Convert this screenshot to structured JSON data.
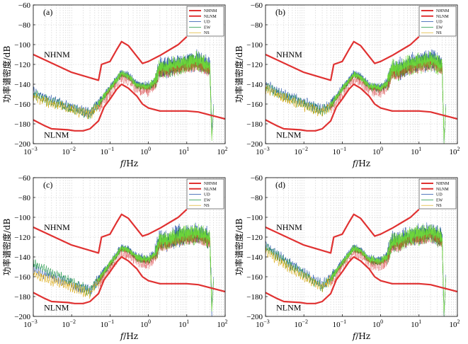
{
  "chart_data": [
    {
      "type": "line",
      "panel_label": "(a)",
      "xlabel": "f/Hz",
      "ylabel": "功率谱密度/dB",
      "xscale": "log",
      "xlim": [
        0.001,
        100
      ],
      "ylim": [
        -200,
        -60
      ],
      "x_ticks": [
        "10",
        "10",
        "10",
        "10",
        "10",
        "10"
      ],
      "x_tick_exponents": [
        "-3",
        "-2",
        "-1",
        "0",
        "1",
        "2"
      ],
      "y_ticks": [
        "-60",
        "-80",
        "-100",
        "-120",
        "-140",
        "-160",
        "-180",
        "-200"
      ],
      "y_tick_values": [
        -60,
        -80,
        -100,
        -120,
        -140,
        -160,
        -180,
        -200
      ],
      "legend": [
        "NHNM",
        "NLNM",
        "UD",
        "EW",
        "NS"
      ],
      "annotations": [
        "NHNM",
        "NLNM"
      ],
      "seed": 1,
      "lowfreq_level": 1,
      "series": [
        {
          "name": "NHNM",
          "color": "#e03131",
          "x": [
            0.001,
            0.01,
            0.05,
            0.06,
            0.1,
            0.15,
            0.2,
            0.3,
            0.7,
            1,
            2,
            6,
            10
          ],
          "values": [
            -110,
            -128,
            -136,
            -120,
            -117,
            -105,
            -97,
            -101,
            -119,
            -117,
            -111,
            -100,
            -92
          ]
        },
        {
          "name": "NLNM",
          "color": "#e03131",
          "x": [
            0.001,
            0.002,
            0.003,
            0.008,
            0.012,
            0.02,
            0.03,
            0.05,
            0.07,
            0.1,
            0.15,
            0.2,
            0.3,
            0.5,
            0.7,
            1,
            2,
            5,
            10,
            20,
            50,
            100
          ],
          "values": [
            -176,
            -182,
            -185,
            -186,
            -187,
            -187,
            -185,
            -177,
            -163,
            -155,
            -145,
            -140,
            -144,
            -152,
            -160,
            -164,
            -167,
            -167,
            -167,
            -168,
            -172,
            -175
          ]
        },
        {
          "name": "UD",
          "color": "#1f4fa8",
          "x": [
            0.001,
            0.003,
            0.01,
            0.03,
            0.05,
            0.1,
            0.2,
            0.3,
            0.5,
            1,
            1.5,
            2,
            3,
            5,
            10,
            20,
            40,
            45,
            50
          ],
          "values": [
            -148,
            -156,
            -163,
            -169,
            -159,
            -143,
            -128,
            -131,
            -140,
            -142,
            -136,
            -122,
            -124,
            -120,
            -118,
            -116,
            -122,
            -190,
            -160
          ]
        },
        {
          "name": "EW",
          "color": "#1a9641",
          "x": [
            0.001,
            0.003,
            0.01,
            0.03,
            0.05,
            0.1,
            0.2,
            0.3,
            0.5,
            1,
            1.5,
            2,
            3,
            5,
            10,
            20,
            40,
            45,
            50
          ],
          "values": [
            -150,
            -158,
            -165,
            -170,
            -160,
            -144,
            -129,
            -132,
            -141,
            -143,
            -137,
            -123,
            -125,
            -121,
            -119,
            -117,
            -123,
            -195,
            -162
          ]
        },
        {
          "name": "NS",
          "color": "#d9a400",
          "x": [
            0.001,
            0.003,
            0.01,
            0.03,
            0.05,
            0.1,
            0.2,
            0.3,
            0.5,
            1,
            1.5,
            2,
            3,
            5,
            10,
            20,
            40,
            45,
            50
          ],
          "values": [
            -152,
            -160,
            -166,
            -171,
            -161,
            -145,
            -130,
            -133,
            -142,
            -144,
            -138,
            -124,
            -126,
            -122,
            -120,
            -118,
            -124,
            -192,
            -165
          ]
        }
      ]
    },
    {
      "type": "line",
      "panel_label": "(b)",
      "xlabel": "f/Hz",
      "ylabel": "功率谱密度/dB",
      "xscale": "log",
      "xlim": [
        0.001,
        100
      ],
      "ylim": [
        -200,
        -60
      ],
      "x_ticks": [
        "10",
        "10",
        "10",
        "10",
        "10",
        "10"
      ],
      "x_tick_exponents": [
        "-3",
        "-2",
        "-1",
        "0",
        "1",
        "2"
      ],
      "y_ticks": [
        "-60",
        "-80",
        "-100",
        "-120",
        "-140",
        "-160",
        "-180",
        "-200"
      ],
      "y_tick_values": [
        -60,
        -80,
        -100,
        -120,
        -140,
        -160,
        -180,
        -200
      ],
      "legend": [
        "NHNM",
        "NLNM",
        "UD",
        "EW",
        "NS"
      ],
      "annotations": [
        "NHNM",
        "NLNM"
      ],
      "seed": 2,
      "lowfreq_level": 2,
      "series": [
        {
          "name": "NHNM",
          "color": "#e03131",
          "x": [
            0.001,
            0.01,
            0.05,
            0.06,
            0.1,
            0.15,
            0.2,
            0.3,
            0.7,
            1,
            2,
            6,
            10
          ],
          "values": [
            -110,
            -128,
            -136,
            -120,
            -117,
            -105,
            -97,
            -101,
            -119,
            -117,
            -111,
            -100,
            -92
          ]
        },
        {
          "name": "NLNM",
          "color": "#e03131",
          "x": [
            0.001,
            0.002,
            0.003,
            0.008,
            0.012,
            0.02,
            0.03,
            0.05,
            0.07,
            0.1,
            0.15,
            0.2,
            0.3,
            0.5,
            0.7,
            1,
            2,
            5,
            10,
            20,
            50,
            100
          ],
          "values": [
            -176,
            -182,
            -185,
            -186,
            -187,
            -187,
            -185,
            -177,
            -163,
            -155,
            -145,
            -140,
            -144,
            -152,
            -160,
            -164,
            -167,
            -167,
            -167,
            -168,
            -172,
            -175
          ]
        },
        {
          "name": "UD",
          "color": "#1f4fa8",
          "x": [
            0.001,
            0.003,
            0.01,
            0.03,
            0.05,
            0.1,
            0.2,
            0.3,
            0.5,
            1,
            1.5,
            2,
            3,
            5,
            10,
            20,
            40,
            45,
            50
          ],
          "values": [
            -140,
            -150,
            -158,
            -166,
            -160,
            -144,
            -129,
            -132,
            -141,
            -143,
            -138,
            -124,
            -125,
            -120,
            -118,
            -115,
            -121,
            -200,
            -160
          ]
        },
        {
          "name": "EW",
          "color": "#1a9641",
          "x": [
            0.001,
            0.003,
            0.01,
            0.03,
            0.05,
            0.1,
            0.2,
            0.3,
            0.5,
            1,
            1.5,
            2,
            3,
            5,
            10,
            20,
            40,
            45,
            50
          ],
          "values": [
            -142,
            -152,
            -160,
            -167,
            -161,
            -145,
            -130,
            -133,
            -142,
            -144,
            -139,
            -125,
            -126,
            -121,
            -119,
            -116,
            -122,
            -198,
            -162
          ]
        },
        {
          "name": "NS",
          "color": "#d9a400",
          "x": [
            0.001,
            0.003,
            0.01,
            0.03,
            0.05,
            0.1,
            0.2,
            0.3,
            0.5,
            1,
            1.5,
            2,
            3,
            5,
            10,
            20,
            40,
            45,
            50
          ],
          "values": [
            -144,
            -154,
            -162,
            -168,
            -162,
            -146,
            -131,
            -134,
            -143,
            -145,
            -140,
            -126,
            -127,
            -122,
            -120,
            -117,
            -123,
            -196,
            -164
          ]
        }
      ]
    },
    {
      "type": "line",
      "panel_label": "(c)",
      "xlabel": "f/Hz",
      "ylabel": "功率谱密度/dB",
      "xscale": "log",
      "xlim": [
        0.001,
        100
      ],
      "ylim": [
        -200,
        -60
      ],
      "x_ticks": [
        "10",
        "10",
        "10",
        "10",
        "10",
        "10"
      ],
      "x_tick_exponents": [
        "-3",
        "-2",
        "-1",
        "0",
        "1",
        "2"
      ],
      "y_ticks": [
        "-60",
        "-80",
        "-100",
        "-120",
        "-140",
        "-160",
        "-180",
        "-200"
      ],
      "y_tick_values": [
        -60,
        -80,
        -100,
        -120,
        -140,
        -160,
        -180,
        -200
      ],
      "legend": [
        "NHNM",
        "NLNM",
        "UD",
        "EW",
        "NS"
      ],
      "annotations": [
        "NHNM",
        "NLNM"
      ],
      "seed": 3,
      "lowfreq_level": 3,
      "series": [
        {
          "name": "NHNM",
          "color": "#e03131",
          "x": [
            0.001,
            0.01,
            0.05,
            0.06,
            0.1,
            0.15,
            0.2,
            0.3,
            0.7,
            1,
            2,
            6,
            10
          ],
          "values": [
            -110,
            -128,
            -136,
            -120,
            -117,
            -105,
            -97,
            -101,
            -119,
            -117,
            -111,
            -100,
            -92
          ]
        },
        {
          "name": "NLNM",
          "color": "#e03131",
          "x": [
            0.001,
            0.002,
            0.003,
            0.008,
            0.012,
            0.02,
            0.03,
            0.05,
            0.07,
            0.1,
            0.15,
            0.2,
            0.3,
            0.5,
            0.7,
            1,
            2,
            5,
            10,
            20,
            50,
            100
          ],
          "values": [
            -176,
            -182,
            -185,
            -186,
            -187,
            -187,
            -185,
            -177,
            -163,
            -155,
            -145,
            -140,
            -144,
            -152,
            -160,
            -164,
            -167,
            -167,
            -167,
            -168,
            -172,
            -175
          ]
        },
        {
          "name": "UD",
          "color": "#1f4fa8",
          "x": [
            0.001,
            0.003,
            0.01,
            0.03,
            0.05,
            0.1,
            0.2,
            0.3,
            0.5,
            1,
            1.5,
            2,
            3,
            5,
            10,
            20,
            40,
            45,
            50
          ],
          "values": [
            -152,
            -160,
            -167,
            -174,
            -162,
            -146,
            -130,
            -132,
            -140,
            -142,
            -136,
            -123,
            -124,
            -119,
            -117,
            -116,
            -121,
            -190,
            -160
          ]
        },
        {
          "name": "EW",
          "color": "#1a9641",
          "x": [
            0.001,
            0.003,
            0.01,
            0.03,
            0.05,
            0.1,
            0.2,
            0.3,
            0.5,
            1,
            1.5,
            2,
            3,
            5,
            10,
            20,
            40,
            45,
            50
          ],
          "values": [
            -146,
            -156,
            -165,
            -175,
            -163,
            -147,
            -131,
            -133,
            -141,
            -143,
            -137,
            -124,
            -125,
            -120,
            -118,
            -117,
            -122,
            -195,
            -162
          ]
        },
        {
          "name": "NS",
          "color": "#d9a400",
          "x": [
            0.001,
            0.003,
            0.01,
            0.03,
            0.05,
            0.1,
            0.2,
            0.3,
            0.5,
            1,
            1.5,
            2,
            3,
            5,
            10,
            20,
            40,
            45,
            50
          ],
          "values": [
            -158,
            -164,
            -170,
            -177,
            -164,
            -148,
            -132,
            -134,
            -142,
            -144,
            -138,
            -125,
            -126,
            -121,
            -119,
            -118,
            -123,
            -192,
            -165
          ]
        }
      ]
    },
    {
      "type": "line",
      "panel_label": "(d)",
      "xlabel": "f/Hz",
      "ylabel": "功率谱密度/dB",
      "xscale": "log",
      "xlim": [
        0.001,
        100
      ],
      "ylim": [
        -200,
        -60
      ],
      "x_ticks": [
        "10",
        "10",
        "10",
        "10",
        "10",
        "10"
      ],
      "x_tick_exponents": [
        "-3",
        "-2",
        "-1",
        "0",
        "1",
        "2"
      ],
      "y_ticks": [
        "-60",
        "-80",
        "-100",
        "-120",
        "-140",
        "-160",
        "-180",
        "-200"
      ],
      "y_tick_values": [
        -60,
        -80,
        -100,
        -120,
        -140,
        -160,
        -180,
        -200
      ],
      "legend": [
        "NHNM",
        "NLNM",
        "UD",
        "EW",
        "NS"
      ],
      "annotations": [
        "NHNM",
        "NLNM"
      ],
      "seed": 4,
      "lowfreq_level": 4,
      "series": [
        {
          "name": "NHNM",
          "color": "#e03131",
          "x": [
            0.001,
            0.01,
            0.05,
            0.06,
            0.1,
            0.15,
            0.2,
            0.3,
            0.7,
            1,
            2,
            6,
            10
          ],
          "values": [
            -110,
            -128,
            -136,
            -120,
            -117,
            -105,
            -97,
            -101,
            -119,
            -117,
            -111,
            -100,
            -92
          ]
        },
        {
          "name": "NLNM",
          "color": "#e03131",
          "x": [
            0.001,
            0.002,
            0.003,
            0.008,
            0.012,
            0.02,
            0.03,
            0.05,
            0.07,
            0.1,
            0.15,
            0.2,
            0.3,
            0.5,
            0.7,
            1,
            2,
            5,
            10,
            20,
            50,
            100
          ],
          "values": [
            -176,
            -182,
            -185,
            -186,
            -187,
            -187,
            -185,
            -177,
            -163,
            -155,
            -145,
            -140,
            -144,
            -152,
            -160,
            -164,
            -167,
            -167,
            -167,
            -168,
            -172,
            -175
          ]
        },
        {
          "name": "UD",
          "color": "#1f4fa8",
          "x": [
            0.001,
            0.003,
            0.01,
            0.03,
            0.05,
            0.1,
            0.2,
            0.3,
            0.5,
            1,
            1.5,
            2,
            3,
            5,
            10,
            20,
            40,
            45,
            50
          ],
          "values": [
            -128,
            -142,
            -156,
            -168,
            -161,
            -145,
            -130,
            -133,
            -142,
            -144,
            -138,
            -124,
            -124,
            -119,
            -117,
            -115,
            -120,
            -200,
            -158
          ]
        },
        {
          "name": "EW",
          "color": "#1a9641",
          "x": [
            0.001,
            0.003,
            0.01,
            0.03,
            0.05,
            0.1,
            0.2,
            0.3,
            0.5,
            1,
            1.5,
            2,
            3,
            5,
            10,
            20,
            40,
            45,
            50
          ],
          "values": [
            -130,
            -144,
            -158,
            -170,
            -162,
            -146,
            -131,
            -134,
            -143,
            -145,
            -139,
            -125,
            -125,
            -120,
            -118,
            -116,
            -121,
            -198,
            -160
          ]
        },
        {
          "name": "NS",
          "color": "#d9a400",
          "x": [
            0.001,
            0.003,
            0.01,
            0.03,
            0.05,
            0.1,
            0.2,
            0.3,
            0.5,
            1,
            1.5,
            2,
            3,
            5,
            10,
            20,
            40,
            45,
            50
          ],
          "values": [
            -134,
            -148,
            -160,
            -171,
            -163,
            -147,
            -132,
            -135,
            -144,
            -146,
            -140,
            -126,
            -126,
            -121,
            -119,
            -117,
            -122,
            -196,
            -162
          ]
        }
      ]
    }
  ]
}
